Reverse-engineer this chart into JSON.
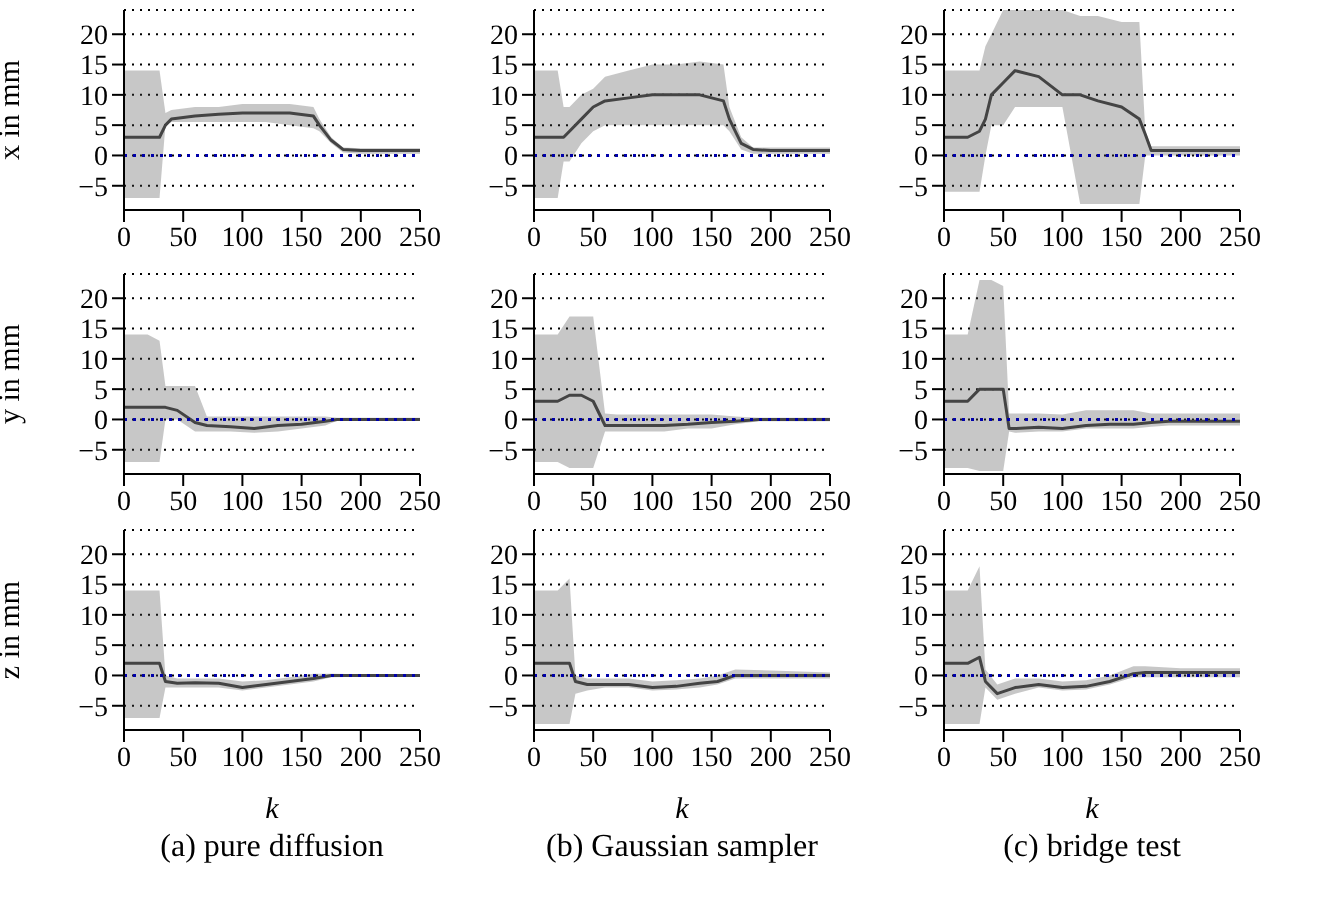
{
  "chart_data": [
    {
      "type": "line",
      "ylabel": "x in mm",
      "xlim": [
        0,
        250
      ],
      "xticks": [
        0,
        50,
        100,
        150,
        200,
        250
      ],
      "ylim": [
        -9,
        24
      ],
      "yticks": [
        -5,
        0,
        5,
        10,
        15,
        20
      ],
      "grid": "y",
      "ref_lines": [
        {
          "axis": "y",
          "value": 0,
          "color": "#0000aa",
          "line_style": "dotted"
        }
      ],
      "series": [
        {
          "color": "#444444",
          "x": [
            0,
            10,
            20,
            30,
            35,
            40,
            60,
            80,
            100,
            120,
            140,
            160,
            165,
            175,
            185,
            200,
            220,
            250
          ],
          "values": [
            3,
            3,
            3,
            3,
            5,
            6,
            6.5,
            6.8,
            7,
            7,
            7,
            6.5,
            5,
            2.5,
            1,
            0.8,
            0.8,
            0.8
          ],
          "lower": [
            -7,
            -7,
            -7,
            -7,
            5,
            5.5,
            5.5,
            5.5,
            5.5,
            5.5,
            5,
            4.5,
            4,
            2,
            0.5,
            0.3,
            0.3,
            0.3
          ],
          "upper": [
            14,
            14,
            14,
            14,
            7,
            7.5,
            8,
            8,
            8.5,
            8.5,
            8.5,
            8,
            6,
            3,
            1.3,
            1.2,
            1.2,
            1.2
          ]
        }
      ]
    },
    {
      "type": "line",
      "xlim": [
        0,
        250
      ],
      "xticks": [
        0,
        50,
        100,
        150,
        200,
        250
      ],
      "ylim": [
        -9,
        24
      ],
      "yticks": [
        -5,
        0,
        5,
        10,
        15,
        20
      ],
      "grid": "y",
      "ref_lines": [
        {
          "axis": "y",
          "value": 0,
          "color": "#0000aa",
          "line_style": "dotted"
        }
      ],
      "series": [
        {
          "color": "#444444",
          "x": [
            0,
            10,
            20,
            25,
            30,
            40,
            50,
            60,
            80,
            100,
            120,
            140,
            160,
            165,
            175,
            185,
            200,
            250
          ],
          "values": [
            3,
            3,
            3,
            3,
            4,
            6,
            8,
            9,
            9.5,
            10,
            10,
            10,
            9,
            6,
            2,
            1,
            0.8,
            0.8
          ],
          "lower": [
            -7,
            -7,
            -7,
            -1,
            -1,
            2,
            4,
            5,
            5,
            5,
            5,
            5,
            5,
            4,
            1,
            0.3,
            0.3,
            0.3
          ],
          "upper": [
            14,
            14,
            14,
            8,
            8,
            10,
            11,
            13,
            14,
            15,
            15,
            15.5,
            15,
            8,
            3,
            1.3,
            1.3,
            1.3
          ]
        }
      ]
    },
    {
      "type": "line",
      "xlim": [
        0,
        250
      ],
      "xticks": [
        0,
        50,
        100,
        150,
        200,
        250
      ],
      "ylim": [
        -9,
        24
      ],
      "yticks": [
        -5,
        0,
        5,
        10,
        15,
        20
      ],
      "grid": "y",
      "ref_lines": [
        {
          "axis": "y",
          "value": 0,
          "color": "#0000aa",
          "line_style": "dotted"
        }
      ],
      "series": [
        {
          "color": "#444444",
          "x": [
            0,
            10,
            20,
            30,
            35,
            40,
            50,
            60,
            80,
            100,
            115,
            130,
            150,
            165,
            170,
            175,
            185,
            200,
            250
          ],
          "values": [
            3,
            3,
            3,
            4,
            6,
            10,
            12,
            14,
            13,
            10,
            10,
            9,
            8,
            6,
            3.5,
            0.8,
            0.8,
            0.8,
            0.8
          ],
          "lower": [
            -6,
            -6,
            -6,
            -6,
            0,
            5,
            5,
            8,
            8,
            8,
            -8,
            -8,
            -8,
            -8,
            0,
            0,
            0,
            0,
            0
          ],
          "upper": [
            14,
            14,
            14,
            14,
            18,
            20,
            24,
            24,
            24,
            24,
            23,
            23,
            22,
            22,
            4,
            1.5,
            1.5,
            1.5,
            1.5
          ]
        }
      ]
    },
    {
      "type": "line",
      "ylabel": "y in mm",
      "xlim": [
        0,
        250
      ],
      "xticks": [
        0,
        50,
        100,
        150,
        200,
        250
      ],
      "ylim": [
        -9,
        24
      ],
      "yticks": [
        -5,
        0,
        5,
        10,
        15,
        20
      ],
      "grid": "y",
      "ref_lines": [
        {
          "axis": "y",
          "value": 0,
          "color": "#0000aa",
          "line_style": "dotted"
        }
      ],
      "series": [
        {
          "color": "#444444",
          "x": [
            0,
            10,
            20,
            30,
            35,
            45,
            60,
            70,
            90,
            110,
            130,
            150,
            170,
            180,
            200,
            250
          ],
          "values": [
            2,
            2,
            2,
            2,
            2,
            1.5,
            -0.5,
            -1,
            -1.2,
            -1.5,
            -1,
            -0.8,
            -0.3,
            0,
            0,
            0
          ],
          "lower": [
            -7,
            -7,
            -7,
            -7,
            0,
            0,
            -2,
            -2,
            -2,
            -2.2,
            -2,
            -1.5,
            -1,
            -0.2,
            -0.2,
            -0.2
          ],
          "upper": [
            14,
            14,
            14,
            13,
            5.5,
            5.5,
            5.5,
            0.5,
            0.5,
            0.5,
            0.5,
            0.5,
            0.5,
            0.3,
            0.3,
            0.3
          ]
        }
      ]
    },
    {
      "type": "line",
      "xlim": [
        0,
        250
      ],
      "xticks": [
        0,
        50,
        100,
        150,
        200,
        250
      ],
      "ylim": [
        -9,
        24
      ],
      "yticks": [
        -5,
        0,
        5,
        10,
        15,
        20
      ],
      "grid": "y",
      "ref_lines": [
        {
          "axis": "y",
          "value": 0,
          "color": "#0000aa",
          "line_style": "dotted"
        }
      ],
      "series": [
        {
          "color": "#444444",
          "x": [
            0,
            10,
            20,
            30,
            40,
            50,
            60,
            70,
            90,
            110,
            130,
            150,
            170,
            190,
            250
          ],
          "values": [
            3,
            3,
            3,
            4,
            4,
            3,
            -1,
            -1,
            -1,
            -1,
            -0.8,
            -0.5,
            -0.3,
            0,
            0
          ],
          "lower": [
            -7,
            -7,
            -7,
            -8,
            -8,
            -8,
            -2,
            -2,
            -2,
            -2,
            -1.5,
            -1.5,
            -0.8,
            -0.3,
            -0.3
          ],
          "upper": [
            14,
            14,
            14,
            17,
            17,
            17,
            1,
            0.8,
            0.8,
            0.8,
            0.8,
            0.8,
            0.5,
            0.3,
            0.3
          ]
        }
      ]
    },
    {
      "type": "line",
      "xlim": [
        0,
        250
      ],
      "xticks": [
        0,
        50,
        100,
        150,
        200,
        250
      ],
      "ylim": [
        -9,
        24
      ],
      "yticks": [
        -5,
        0,
        5,
        10,
        15,
        20
      ],
      "grid": "y",
      "ref_lines": [
        {
          "axis": "y",
          "value": 0,
          "color": "#0000aa",
          "line_style": "dotted"
        }
      ],
      "series": [
        {
          "color": "#444444",
          "x": [
            0,
            10,
            20,
            30,
            40,
            50,
            55,
            60,
            80,
            100,
            120,
            140,
            160,
            175,
            190,
            250
          ],
          "values": [
            3,
            3,
            3,
            5,
            5,
            5,
            -1.5,
            -1.5,
            -1.3,
            -1.5,
            -1,
            -0.8,
            -0.8,
            -0.5,
            -0.3,
            -0.3
          ],
          "lower": [
            -8,
            -8,
            -8,
            -8.5,
            -8.5,
            -8.5,
            -2,
            -2.2,
            -2,
            -2,
            -1.5,
            -1.5,
            -1.5,
            -1.2,
            -1,
            -1
          ],
          "upper": [
            14,
            14,
            14,
            23,
            23,
            22,
            1,
            1,
            1,
            0.8,
            1.5,
            1.5,
            1.5,
            1,
            1,
            1
          ]
        }
      ]
    },
    {
      "type": "line",
      "ylabel": "z in mm",
      "xlabel": "k",
      "annotations": [
        "(a) pure diffusion"
      ],
      "xlim": [
        0,
        250
      ],
      "xticks": [
        0,
        50,
        100,
        150,
        200,
        250
      ],
      "ylim": [
        -9,
        24
      ],
      "yticks": [
        -5,
        0,
        5,
        10,
        15,
        20
      ],
      "grid": "y",
      "ref_lines": [
        {
          "axis": "y",
          "value": 0,
          "color": "#0000aa",
          "line_style": "dotted"
        }
      ],
      "series": [
        {
          "color": "#444444",
          "x": [
            0,
            10,
            20,
            30,
            35,
            45,
            60,
            80,
            100,
            120,
            140,
            160,
            175,
            200,
            250
          ],
          "values": [
            2,
            2,
            2,
            2,
            -1,
            -1.3,
            -1.2,
            -1.3,
            -2,
            -1.5,
            -1,
            -0.5,
            0,
            0,
            0
          ],
          "lower": [
            -7,
            -7,
            -7,
            -7,
            -2,
            -2,
            -2,
            -2,
            -2.5,
            -2,
            -1.5,
            -1,
            -0.3,
            -0.2,
            -0.2
          ],
          "upper": [
            14,
            14,
            14,
            14,
            0,
            -0.5,
            -0.5,
            -0.5,
            -1,
            -0.8,
            -0.3,
            0.3,
            0.3,
            0.2,
            0.2
          ]
        }
      ]
    },
    {
      "type": "line",
      "xlabel": "k",
      "annotations": [
        "(b) Gaussian sampler"
      ],
      "xlim": [
        0,
        250
      ],
      "xticks": [
        0,
        50,
        100,
        150,
        200,
        250
      ],
      "ylim": [
        -9,
        24
      ],
      "yticks": [
        -5,
        0,
        5,
        10,
        15,
        20
      ],
      "grid": "y",
      "ref_lines": [
        {
          "axis": "y",
          "value": 0,
          "color": "#0000aa",
          "line_style": "dotted"
        }
      ],
      "series": [
        {
          "color": "#444444",
          "x": [
            0,
            10,
            20,
            30,
            35,
            45,
            60,
            80,
            100,
            120,
            140,
            155,
            170,
            200,
            250
          ],
          "values": [
            2,
            2,
            2,
            2,
            -1,
            -1.5,
            -1.5,
            -1.5,
            -2,
            -1.8,
            -1.3,
            -1,
            0,
            0,
            0
          ],
          "lower": [
            -8,
            -8,
            -8,
            -8,
            -3,
            -2.5,
            -2,
            -2,
            -2.5,
            -2.3,
            -2,
            -1.5,
            -0.5,
            -0.5,
            -0.5
          ],
          "upper": [
            14,
            14,
            14,
            16,
            0,
            -0.5,
            -0.5,
            -0.5,
            -1,
            -0.8,
            -0.5,
            0,
            1,
            0.8,
            0.5
          ]
        }
      ]
    },
    {
      "type": "line",
      "xlabel": "k",
      "annotations": [
        "(c) bridge test"
      ],
      "xlim": [
        0,
        250
      ],
      "xticks": [
        0,
        50,
        100,
        150,
        200,
        250
      ],
      "ylim": [
        -9,
        24
      ],
      "yticks": [
        -5,
        0,
        5,
        10,
        15,
        20
      ],
      "grid": "y",
      "ref_lines": [
        {
          "axis": "y",
          "value": 0,
          "color": "#0000aa",
          "line_style": "dotted"
        }
      ],
      "series": [
        {
          "color": "#444444",
          "x": [
            0,
            10,
            20,
            30,
            35,
            45,
            60,
            80,
            100,
            120,
            140,
            160,
            170,
            200,
            250
          ],
          "values": [
            2,
            2,
            2,
            3,
            -1,
            -3,
            -2,
            -1.5,
            -2,
            -1.8,
            -1,
            0.3,
            0.5,
            0.5,
            0.5
          ],
          "lower": [
            -8,
            -8,
            -8,
            -8,
            -2,
            -4,
            -3,
            -2,
            -2.5,
            -2.3,
            -1.5,
            -0.3,
            -0.3,
            -0.3,
            -0.3
          ],
          "upper": [
            14,
            14,
            14,
            18,
            1,
            -1.5,
            -0.5,
            -0.5,
            -1,
            -0.8,
            0,
            1.5,
            1.5,
            1.2,
            1.2
          ]
        }
      ]
    }
  ]
}
